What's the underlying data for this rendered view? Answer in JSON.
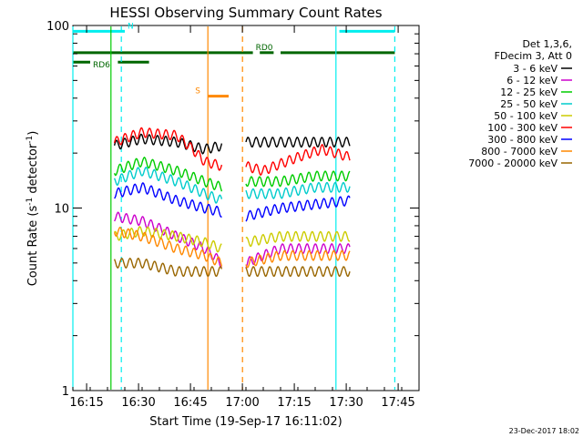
{
  "chart_data": {
    "type": "line",
    "title": "HESSI Observing Summary Count Rates",
    "xlabel": "Start Time (19-Sep-17 16:11:02)",
    "ylabel_main": "Count Rate (s",
    "ylabel_sup1": "-1",
    "ylabel_mid": " detector",
    "ylabel_sup2": "-1",
    "ylabel_end": ")",
    "y_scale": "log",
    "ylim": [
      1,
      100
    ],
    "xlim": [
      "16:11:02",
      "17:52"
    ],
    "x_ticks": [
      "16:15",
      "16:30",
      "16:45",
      "17:00",
      "17:15",
      "17:30",
      "17:45"
    ],
    "x_tick_minutes": [
      3.97,
      18.97,
      33.97,
      48.97,
      63.97,
      78.97,
      93.97
    ],
    "y_ticks": [
      "1",
      "10",
      "100"
    ],
    "y_tick_values": [
      1,
      10,
      100
    ],
    "legend_header": [
      "Det 1,3,6,",
      "FDecim 3, Att 0"
    ],
    "legend_position": "right",
    "series": [
      {
        "name": "3 - 6 keV",
        "color": "#000000",
        "seg1": [
          [
            12,
            22
          ],
          [
            20,
            24
          ],
          [
            30,
            23
          ],
          [
            38,
            21
          ],
          [
            43,
            22
          ]
        ],
        "seg2": [
          [
            50,
            23
          ],
          [
            60,
            23
          ],
          [
            70,
            23
          ],
          [
            80,
            23
          ]
        ]
      },
      {
        "name": "6 - 12 keV",
        "color": "#cc00cc",
        "seg1": [
          [
            12,
            9
          ],
          [
            20,
            8.5
          ],
          [
            30,
            7
          ],
          [
            38,
            6
          ],
          [
            43,
            5
          ]
        ],
        "seg2": [
          [
            50,
            5
          ],
          [
            60,
            6
          ],
          [
            70,
            6
          ],
          [
            80,
            6
          ]
        ]
      },
      {
        "name": "12 - 25 keV",
        "color": "#00cc00",
        "seg1": [
          [
            12,
            16
          ],
          [
            20,
            18
          ],
          [
            30,
            16
          ],
          [
            38,
            14
          ],
          [
            43,
            13
          ]
        ],
        "seg2": [
          [
            50,
            14
          ],
          [
            60,
            14
          ],
          [
            70,
            15
          ],
          [
            80,
            15
          ]
        ]
      },
      {
        "name": "25 - 50 keV",
        "color": "#00cccc",
        "seg1": [
          [
            12,
            14
          ],
          [
            20,
            16
          ],
          [
            30,
            14
          ],
          [
            38,
            12
          ],
          [
            43,
            11
          ]
        ],
        "seg2": [
          [
            50,
            12
          ],
          [
            60,
            12
          ],
          [
            70,
            13
          ],
          [
            80,
            13
          ]
        ]
      },
      {
        "name": "50 - 100 keV",
        "color": "#cccc00",
        "seg1": [
          [
            12,
            7
          ],
          [
            20,
            7.5
          ],
          [
            30,
            7
          ],
          [
            38,
            6.5
          ],
          [
            43,
            6
          ]
        ],
        "seg2": [
          [
            50,
            6.5
          ],
          [
            60,
            7
          ],
          [
            70,
            7
          ],
          [
            80,
            7
          ]
        ]
      },
      {
        "name": "100 - 300 keV",
        "color": "#ff0000",
        "seg1": [
          [
            12,
            23
          ],
          [
            20,
            26
          ],
          [
            30,
            25
          ],
          [
            38,
            18
          ],
          [
            43,
            17
          ]
        ],
        "seg2": [
          [
            50,
            17
          ],
          [
            55,
            16
          ],
          [
            65,
            19
          ],
          [
            72,
            21
          ],
          [
            80,
            19
          ]
        ]
      },
      {
        "name": "300 - 800 keV",
        "color": "#0000ff",
        "seg1": [
          [
            12,
            12
          ],
          [
            20,
            13
          ],
          [
            30,
            11
          ],
          [
            38,
            10
          ],
          [
            43,
            9.5
          ]
        ],
        "seg2": [
          [
            50,
            9
          ],
          [
            60,
            10
          ],
          [
            70,
            10.5
          ],
          [
            80,
            11
          ]
        ]
      },
      {
        "name": "800 - 7000 keV",
        "color": "#ff8800",
        "seg1": [
          [
            12,
            7.5
          ],
          [
            20,
            7
          ],
          [
            30,
            6
          ],
          [
            38,
            5.5
          ],
          [
            43,
            5
          ]
        ],
        "seg2": [
          [
            50,
            5
          ],
          [
            60,
            5.5
          ],
          [
            70,
            5.5
          ],
          [
            80,
            5.5
          ]
        ]
      },
      {
        "name": "7000 - 20000 keV",
        "color": "#996600",
        "seg1": [
          [
            12,
            5
          ],
          [
            20,
            5
          ],
          [
            30,
            4.5
          ],
          [
            38,
            4.5
          ],
          [
            43,
            4.5
          ]
        ],
        "seg2": [
          [
            50,
            4.5
          ],
          [
            60,
            4.5
          ],
          [
            70,
            4.5
          ],
          [
            80,
            4.5
          ]
        ]
      }
    ],
    "flags": [
      {
        "label": "N",
        "color": "#00eeee",
        "y": 93,
        "ranges": [
          [
            0,
            15
          ],
          [
            77,
            93
          ]
        ]
      },
      {
        "label": "RD0",
        "color": "#006600",
        "y": 71,
        "ranges": [
          [
            0,
            52
          ],
          [
            54,
            58
          ],
          [
            60,
            93
          ]
        ]
      },
      {
        "label": "RD6",
        "color": "#006600",
        "y": 63,
        "ranges": [
          [
            0,
            5
          ],
          [
            13,
            22
          ]
        ]
      },
      {
        "label": "S",
        "color": "#ff8800",
        "y": 41,
        "ranges": [
          [
            39,
            45
          ]
        ]
      }
    ],
    "vlines": [
      {
        "x": 0,
        "color": "#00eeee",
        "style": "solid"
      },
      {
        "x": 14,
        "color": "#00eeee",
        "style": "dashed"
      },
      {
        "x": 11,
        "color": "#00cc00",
        "style": "solid"
      },
      {
        "x": 39,
        "color": "#ff8800",
        "style": "solid"
      },
      {
        "x": 49,
        "color": "#ff8800",
        "style": "dashed"
      },
      {
        "x": 76,
        "color": "#00eeee",
        "style": "solid"
      },
      {
        "x": 93,
        "color": "#00eeee",
        "style": "dashed"
      }
    ]
  },
  "footer": {
    "timestamp": "23-Dec-2017 18:02"
  }
}
